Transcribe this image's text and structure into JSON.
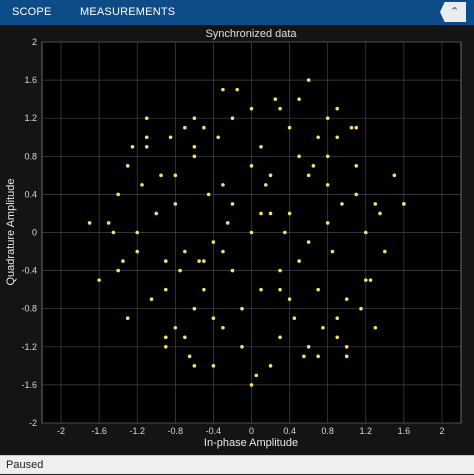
{
  "toolbar": {
    "tabs": [
      {
        "label": "SCOPE"
      },
      {
        "label": "MEASUREMENTS"
      }
    ],
    "collapse_icon": "chevron-up-icon"
  },
  "status": {
    "text": "Paused"
  },
  "colors": {
    "accent": "#0d4c86",
    "points": "#f4e16a",
    "plot_bg": "#000000",
    "grid": "#454545"
  },
  "chart_data": {
    "type": "scatter",
    "title": "Synchronized data",
    "xlabel": "In-phase Amplitude",
    "ylabel": "Quadrature Amplitude",
    "xlim": [
      -2.2,
      2.2
    ],
    "ylim": [
      -2,
      2
    ],
    "xticks": [
      -2,
      -1.6,
      -1.2,
      -0.8,
      -0.4,
      0,
      0.4,
      0.8,
      1.2,
      1.6,
      2
    ],
    "yticks": [
      -2,
      -1.6,
      -1.2,
      -0.8,
      -0.4,
      0,
      0.4,
      0.8,
      1.2,
      1.6,
      2
    ],
    "grid": true,
    "series": [
      {
        "x": [
          0.1,
          -0.3,
          0.5,
          -0.6,
          0.8,
          -0.9,
          1.1,
          -1.2,
          0.0,
          0.3,
          -0.4,
          0.7,
          -0.8,
          1.0,
          -1.1,
          1.3,
          -1.4,
          0.2,
          -0.2,
          0.6,
          -0.6,
          0.9,
          -1.0,
          1.2,
          -1.3,
          0.4,
          -0.5,
          0.8,
          -0.7,
          1.1,
          -1.2,
          0.3,
          -0.1,
          0.5,
          -0.9,
          1.4,
          -1.5,
          0.0,
          0.7,
          -0.3,
          1.6,
          -1.6,
          0.1,
          -0.8,
          0.9,
          -0.4,
          1.3,
          -1.1,
          0.6,
          -0.2,
          1.0,
          -1.3,
          0.2,
          -0.6,
          0.8,
          -0.9,
          1.1,
          -0.5,
          0.4,
          -0.7,
          1.5,
          -1.4,
          0.05,
          -0.35,
          0.65,
          -1.05,
          1.25,
          -0.15,
          0.45,
          -0.85,
          0.95,
          -1.25,
          0.25,
          -0.55,
          0.75,
          -0.95,
          1.15,
          -1.35,
          0.35,
          -0.45,
          0.55,
          -0.65,
          0.85,
          -0.75,
          1.05,
          -1.15,
          1.35,
          -1.45,
          0.15,
          -0.25,
          0.0,
          0.1,
          -0.1,
          0.2,
          -0.2,
          0.3,
          -0.3,
          0.4,
          -0.4,
          0.5,
          0.6,
          -0.5,
          0.7,
          -0.6,
          0.8,
          -0.7,
          0.9,
          -0.8,
          1.0,
          -0.9,
          1.6,
          -0.6,
          0.3,
          0.9,
          -1.1,
          1.2,
          0.6,
          -0.3,
          0.0,
          -1.7
        ],
        "y": [
          0.2,
          0.5,
          -0.3,
          0.8,
          0.1,
          -0.6,
          0.4,
          -0.2,
          1.3,
          -1.1,
          -0.9,
          1.0,
          -1.0,
          -0.7,
          0.9,
          0.3,
          -0.4,
          -1.4,
          1.2,
          0.6,
          -0.8,
          -0.9,
          0.2,
          -0.5,
          0.7,
          1.1,
          -0.3,
          0.5,
          1.1,
          0.7,
          0.0,
          -0.6,
          -1.2,
          1.4,
          -1.2,
          -0.2,
          0.1,
          0.0,
          -1.3,
          1.5,
          0.3,
          -0.5,
          0.9,
          0.3,
          1.0,
          -1.4,
          -1.0,
          1.0,
          -0.1,
          -0.4,
          -1.2,
          -0.9,
          0.6,
          1.2,
          0.8,
          -0.3,
          1.1,
          -0.6,
          0.2,
          -1.1,
          0.6,
          0.4,
          -1.5,
          1.0,
          0.7,
          -0.7,
          -0.5,
          1.5,
          -0.9,
          1.0,
          0.3,
          0.9,
          1.4,
          -0.3,
          -1.0,
          0.6,
          -0.8,
          -0.3,
          0.0,
          0.4,
          -1.3,
          -1.3,
          -0.2,
          -0.4,
          1.1,
          0.5,
          0.2,
          0.0,
          0.5,
          0.1,
          0.7,
          -0.6,
          -0.8,
          0.2,
          0.3,
          1.3,
          -1.0,
          -0.7,
          -0.1,
          0.8,
          -1.2,
          1.1,
          -0.6,
          0.9,
          1.2,
          -0.2,
          -1.1,
          0.6,
          -1.3,
          -1.1,
          0.3,
          -1.4,
          -0.4,
          1.3,
          1.2,
          0.0,
          1.6,
          -0.2,
          -1.6,
          0.1
        ]
      }
    ]
  }
}
